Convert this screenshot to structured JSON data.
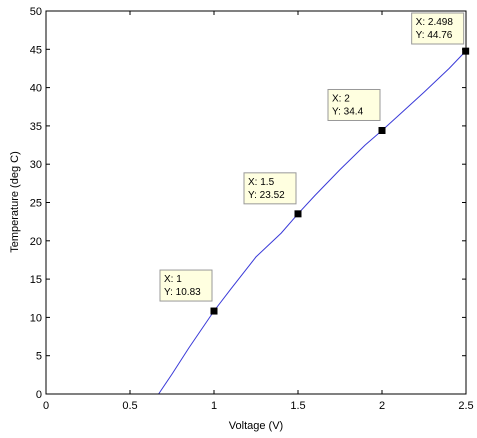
{
  "chart_data": {
    "type": "line",
    "title": "",
    "xlabel": "Voltage (V)",
    "ylabel": "Temperature (deg C)",
    "xlim": [
      0,
      2.5
    ],
    "ylim": [
      0,
      50
    ],
    "x_ticks": [
      0,
      0.5,
      1,
      1.5,
      2,
      2.5
    ],
    "x_tick_labels": [
      "0",
      "0.5",
      "1",
      "1.5",
      "2",
      "2.5"
    ],
    "y_ticks": [
      0,
      5,
      10,
      15,
      20,
      25,
      30,
      35,
      40,
      45,
      50
    ],
    "y_tick_labels": [
      "0",
      "5",
      "10",
      "15",
      "20",
      "25",
      "30",
      "35",
      "40",
      "45",
      "50"
    ],
    "grid": false,
    "line_color": "#3a3ad8",
    "series": [
      {
        "x": [
          0.67,
          0.75,
          0.85,
          1.0,
          1.1,
          1.25,
          1.4,
          1.5,
          1.6,
          1.75,
          1.9,
          2.0,
          2.1,
          2.25,
          2.4,
          2.498
        ],
        "y": [
          0,
          2.6,
          6.0,
          10.83,
          13.7,
          17.9,
          21.0,
          23.52,
          25.9,
          29.3,
          32.5,
          34.4,
          36.4,
          39.4,
          42.5,
          44.76
        ]
      }
    ],
    "datatips": [
      {
        "x": 1,
        "y": 10.83,
        "line1": "X: 1",
        "line2": "Y: 10.83"
      },
      {
        "x": 1.5,
        "y": 23.52,
        "line1": "X: 1.5",
        "line2": "Y: 23.52"
      },
      {
        "x": 2,
        "y": 34.4,
        "line1": "X: 2",
        "line2": "Y: 34.4"
      },
      {
        "x": 2.498,
        "y": 44.76,
        "line1": "X: 2.498",
        "line2": "Y: 44.76"
      }
    ],
    "datatip_fill": "#ffffe0",
    "datatip_border": "#999999"
  }
}
